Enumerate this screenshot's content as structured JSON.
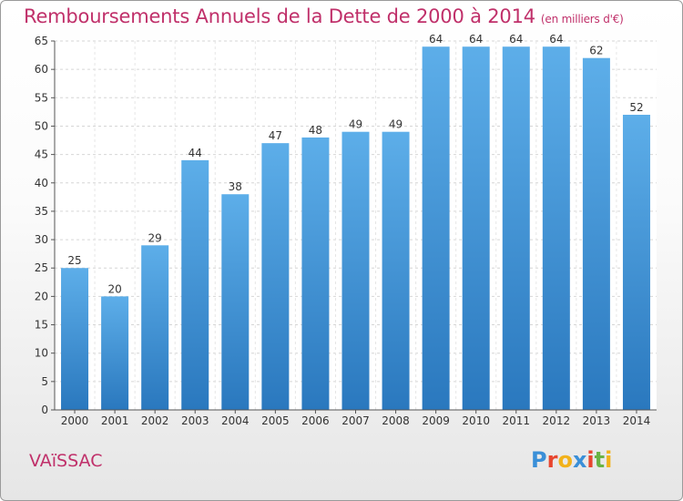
{
  "title": "Remboursements Annuels de la Dette de 2000 à 2014",
  "unit": "(en milliers d'€)",
  "town": "VAïSSAC",
  "logo": {
    "text": "Proxiti",
    "colors": [
      "#3a8fd8",
      "#e8462f",
      "#f2b21b",
      "#3a8fd8",
      "#e8462f",
      "#6ab344",
      "#f2b21b"
    ]
  },
  "colors": {
    "title": "#c0306a",
    "bar_top": "#5daee9",
    "bar_bottom": "#2a78be"
  },
  "chart_data": {
    "type": "bar",
    "categories": [
      "2000",
      "2001",
      "2002",
      "2003",
      "2004",
      "2005",
      "2006",
      "2007",
      "2008",
      "2009",
      "2010",
      "2011",
      "2012",
      "2013",
      "2014"
    ],
    "values": [
      25,
      20,
      29,
      44,
      38,
      47,
      48,
      49,
      49,
      64,
      64,
      64,
      64,
      62,
      52
    ],
    "yticks": [
      0,
      5,
      10,
      15,
      20,
      25,
      30,
      35,
      40,
      45,
      50,
      55,
      60,
      65
    ],
    "ylim": [
      0,
      65
    ],
    "grid": true
  }
}
